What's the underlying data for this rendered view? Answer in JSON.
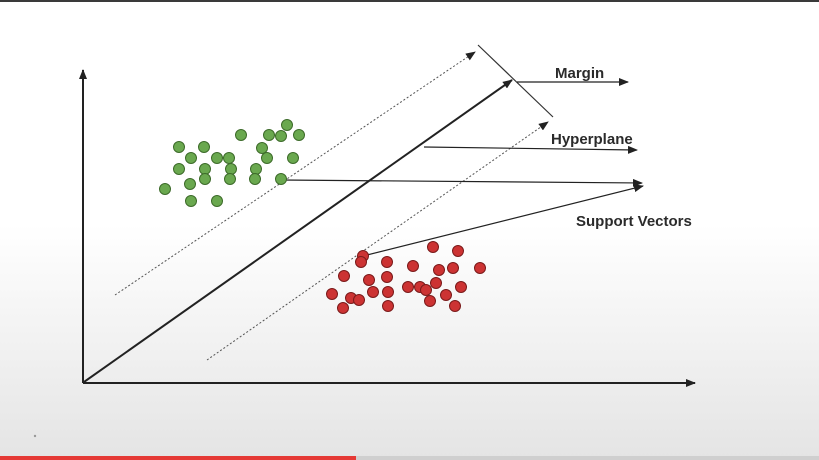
{
  "labels": {
    "margin": "Margin",
    "hyperplane": "Hyperplane",
    "support_vectors": "Support Vectors"
  },
  "colors": {
    "green_class": "#6aa84f",
    "red_class": "#cc3333",
    "line": "#222222"
  },
  "video": {
    "progress": 0.435
  }
}
